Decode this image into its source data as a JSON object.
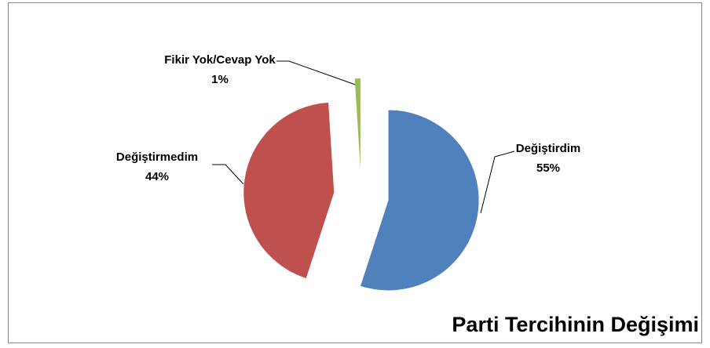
{
  "chart_data": {
    "type": "pie",
    "title": "Parti Tercihinin Değişimi",
    "categories": [
      "Değiştirdim",
      "Değiştirmedim",
      "Fikir Yok/Cevap Yok"
    ],
    "values": [
      55,
      44,
      1
    ],
    "value_labels": [
      "55%",
      "44%",
      "1%"
    ],
    "colors": [
      "#4f81bd",
      "#c0504d",
      "#9bbb59"
    ]
  }
}
